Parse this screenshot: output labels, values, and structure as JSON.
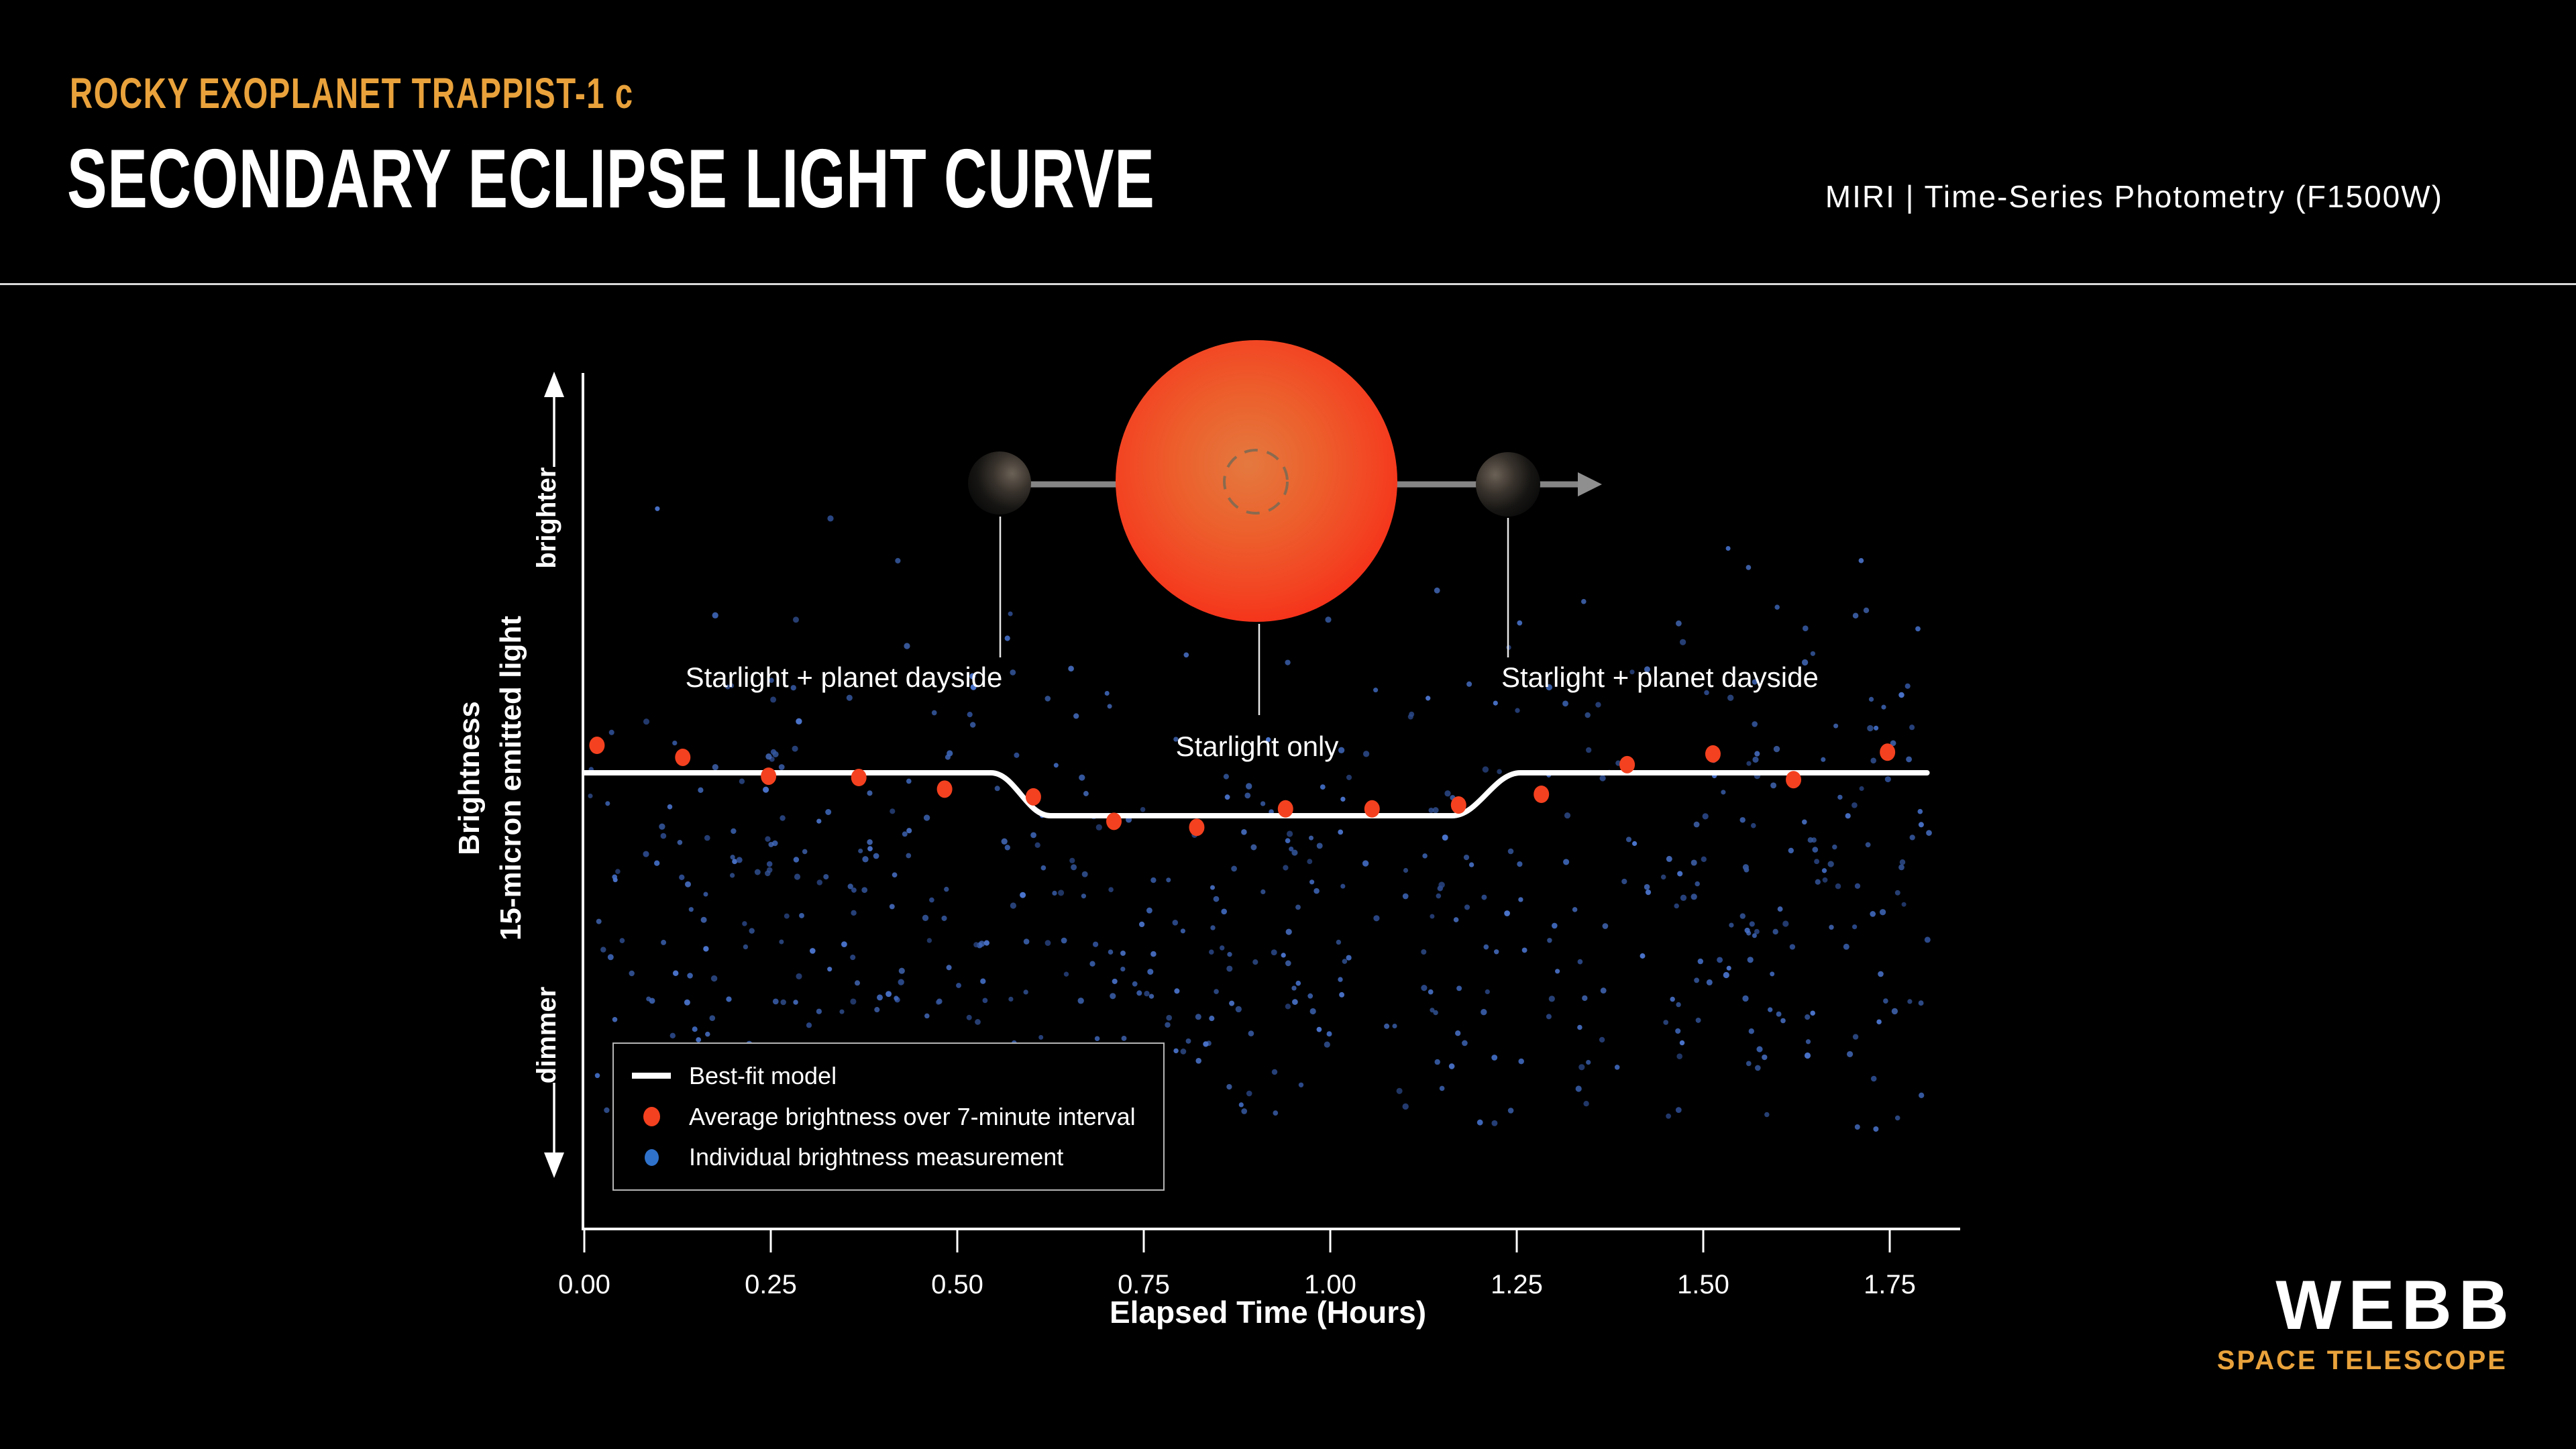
{
  "header": {
    "eyebrow": "ROCKY EXOPLANET TRAPPIST-1 c",
    "title": "SECONDARY ECLIPSE LIGHT CURVE",
    "instrument": "MIRI | Time-Series Photometry (F1500W)"
  },
  "colors": {
    "background": "#000000",
    "accent_orange": "#E9A23B",
    "model_line": "#FFFFFF",
    "average_dot": "#F4411F",
    "individual_palette": [
      "#4a74cc",
      "#3e66b8",
      "#35589f",
      "#2c4a8c"
    ],
    "star_core": "#E4793F",
    "star_edge": "#F62E18",
    "orbit_gray": "#858585",
    "axis": "#FFFFFF",
    "legend_border": "#B5B5B5"
  },
  "chart_data": {
    "type": "scatter",
    "title": "Secondary Eclipse Light Curve",
    "xlabel": "Elapsed Time (Hours)",
    "x_ticks": [
      "0.00",
      "0.25",
      "0.50",
      "0.75",
      "1.00",
      "1.25",
      "1.50",
      "1.75"
    ],
    "x_range_hours": [
      0.0,
      1.845
    ],
    "ylabel": "Brightness",
    "ylabel_sub": "15-micron emitted light",
    "y_direction_labels": {
      "up": "brighter",
      "down": "dimmer"
    },
    "y_units": "relative brightness, secondary-eclipse depth = 1",
    "grid": "off",
    "legend_position": "lower-left box",
    "annotations": {
      "left": "Starlight + planet dayside",
      "center": "Starlight only",
      "right": "Starlight + planet dayside"
    },
    "best_fit_model": {
      "baseline_rel": 0,
      "eclipse_depth_rel": -1,
      "ingress_start_hr": 0.545,
      "ingress_end_hr": 0.625,
      "egress_start_hr": 1.163,
      "egress_end_hr": 1.255,
      "model_end_hr": 1.8
    },
    "average_points": {
      "interval_minutes": 7,
      "x_hours": [
        0.017,
        0.132,
        0.247,
        0.368,
        0.483,
        0.602,
        0.71,
        0.821,
        0.94,
        1.056,
        1.172,
        1.283,
        1.398,
        1.513,
        1.621,
        1.747
      ],
      "y_rel": [
        0.64,
        0.36,
        -0.08,
        -0.11,
        -0.38,
        -0.56,
        -1.13,
        -1.27,
        -0.84,
        -0.84,
        -0.75,
        -0.5,
        0.19,
        0.44,
        -0.16,
        0.48
      ]
    },
    "individual_points": {
      "count": 575,
      "seed": 11,
      "x_min_hr": 0.004,
      "x_max_hr": 1.805,
      "y_center_rel": -2.9,
      "y_sigma_rel": 3.5,
      "y_clip_rel": [
        -8.3,
        6.95
      ],
      "note": "unlabeled random-looking cloud of individual photometric points; regenerated deterministically from seed"
    }
  },
  "legend": {
    "items": [
      {
        "marker": "white-line",
        "label": "Best-fit model"
      },
      {
        "marker": "red-dot",
        "label": "Average brightness over 7-minute interval"
      },
      {
        "marker": "blue-dot",
        "label": "Individual brightness measurement"
      }
    ]
  },
  "logo": {
    "name": "WEBB",
    "tagline": "SPACE TELESCOPE"
  }
}
